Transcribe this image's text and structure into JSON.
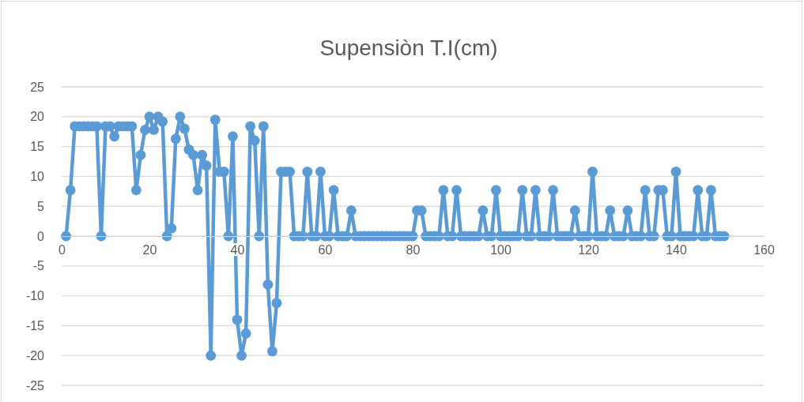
{
  "chart_data": {
    "type": "line",
    "title": "Supensiòn T.I(cm)",
    "x": [
      1,
      2,
      3,
      4,
      5,
      6,
      7,
      8,
      9,
      10,
      11,
      12,
      13,
      14,
      15,
      16,
      17,
      18,
      19,
      20,
      21,
      22,
      23,
      24,
      25,
      26,
      27,
      28,
      29,
      30,
      31,
      32,
      33,
      34,
      35,
      36,
      37,
      38,
      39,
      40,
      41,
      42,
      43,
      44,
      45,
      46,
      47,
      48,
      49,
      50,
      51,
      52,
      53,
      54,
      55,
      56,
      57,
      58,
      59,
      60,
      61,
      62,
      63,
      64,
      65,
      66,
      67,
      68,
      69,
      70,
      71,
      72,
      73,
      74,
      75,
      76,
      77,
      78,
      79,
      80,
      81,
      82,
      83,
      84,
      85,
      86,
      87,
      88,
      89,
      90,
      91,
      92,
      93,
      94,
      95,
      96,
      97,
      98,
      99,
      100,
      101,
      102,
      103,
      104,
      105,
      106,
      107,
      108,
      109,
      110,
      111,
      112,
      113,
      114,
      115,
      116,
      117,
      118,
      119,
      120,
      121,
      122,
      123,
      124,
      125,
      126,
      127,
      128,
      129,
      130,
      131,
      132,
      133,
      134,
      135,
      136,
      137,
      138,
      139,
      140,
      141,
      142,
      143,
      144,
      145,
      146,
      147,
      148,
      149,
      150,
      151
    ],
    "series": [
      {
        "color": "#5b9bd5",
        "values": [
          0,
          7.7,
          18.4,
          18.4,
          18.4,
          18.4,
          18.4,
          18.4,
          0,
          18.4,
          18.4,
          16.7,
          18.4,
          18.4,
          18.4,
          18.4,
          7.7,
          13.6,
          17.8,
          20,
          17.8,
          20,
          19.2,
          0,
          1.3,
          16.3,
          20,
          18,
          14.5,
          13.6,
          7.7,
          13.6,
          11.8,
          -20,
          19.5,
          10.8,
          10.8,
          0,
          16.7,
          -14,
          -20,
          -16.3,
          18.4,
          16,
          0,
          18.4,
          -8.1,
          -19.3,
          -11.2,
          10.8,
          10.8,
          10.8,
          0,
          0,
          0,
          10.8,
          0,
          0,
          10.8,
          0,
          0,
          7.7,
          0,
          0,
          0,
          4.3,
          0,
          0,
          0,
          0,
          0,
          0,
          0,
          0,
          0,
          0,
          0,
          0,
          0,
          0,
          4.3,
          4.3,
          0,
          0,
          0,
          0,
          7.7,
          0,
          0,
          7.7,
          0,
          0,
          0,
          0,
          0,
          4.3,
          0,
          0,
          7.7,
          0,
          0,
          0,
          0,
          0,
          7.7,
          0,
          0,
          7.7,
          0,
          0,
          0,
          7.7,
          0,
          0,
          0,
          0,
          4.3,
          0,
          0,
          0,
          10.8,
          0,
          0,
          0,
          4.3,
          0,
          0,
          0,
          4.3,
          0,
          0,
          0,
          7.7,
          0,
          0,
          7.7,
          7.7,
          0,
          0,
          10.8,
          0,
          0,
          0,
          0,
          7.7,
          0,
          0,
          7.7,
          0,
          0,
          0
        ]
      }
    ],
    "xlim": [
      0,
      160
    ],
    "xticks": [
      0,
      20,
      40,
      60,
      80,
      100,
      120,
      140,
      160
    ],
    "ylim": [
      -25,
      25
    ],
    "yticks": [
      -25,
      -20,
      -15,
      -10,
      -5,
      0,
      5,
      10,
      15,
      20,
      25
    ],
    "grid": "y",
    "marker": "circle",
    "line_style": "solid"
  }
}
